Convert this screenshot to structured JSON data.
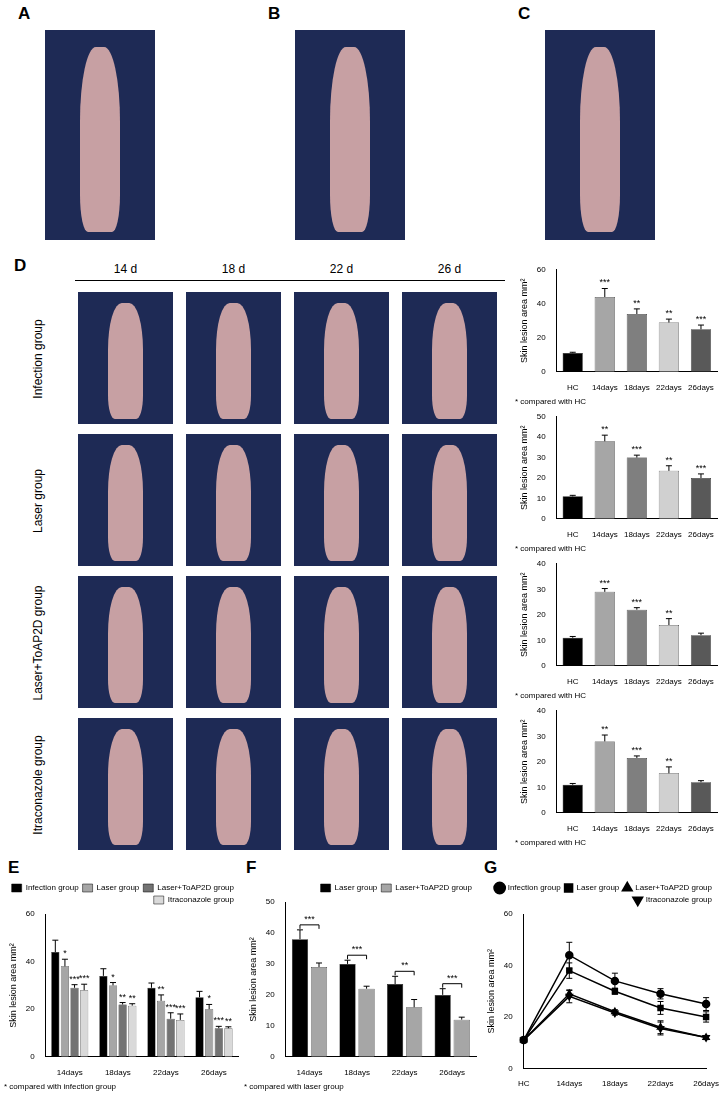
{
  "figure": {
    "panel_labels": [
      "A",
      "B",
      "C",
      "D",
      "E",
      "F",
      "G"
    ],
    "photo_columns": [
      "14 d",
      "18 d",
      "22 d",
      "26 d"
    ],
    "photo_rows": [
      "Infection group",
      "Laser group",
      "Laser+ToAP2D group",
      "Itraconazole group"
    ]
  },
  "chart_data": [
    {
      "type": "bar",
      "y_label": "Skin lesion area mm²",
      "note": "* compared with HC",
      "categories": [
        "HC",
        "14days",
        "18days",
        "22days",
        "26days"
      ],
      "values": [
        11,
        44,
        34,
        29,
        25
      ],
      "errors": [
        0.5,
        5,
        3,
        2,
        2.5
      ],
      "colors": [
        "#000000",
        "#a6a6a6",
        "#7f7f7f",
        "#d0d0d0",
        "#595959"
      ],
      "annotations": [
        null,
        "***",
        "**",
        "**",
        "***"
      ],
      "ylim": [
        0,
        60
      ],
      "yticks": [
        0,
        20,
        40,
        60
      ],
      "grid": false
    },
    {
      "type": "bar",
      "y_label": "Skin lesion area mm²",
      "note": "* compared with HC",
      "categories": [
        "HC",
        "14days",
        "18days",
        "22days",
        "26days"
      ],
      "values": [
        11,
        38,
        30,
        23.5,
        20
      ],
      "errors": [
        0.5,
        3,
        1.2,
        2.5,
        2
      ],
      "colors": [
        "#000000",
        "#a6a6a6",
        "#7f7f7f",
        "#d0d0d0",
        "#595959"
      ],
      "annotations": [
        null,
        "**",
        "***",
        "**",
        "***"
      ],
      "ylim": [
        0,
        50
      ],
      "yticks": [
        0,
        10,
        20,
        30,
        40,
        50
      ],
      "grid": false
    },
    {
      "type": "bar",
      "y_label": "Skin lesion area mm²",
      "note": "* compared with HC",
      "categories": [
        "HC",
        "14days",
        "18days",
        "22days",
        "26days"
      ],
      "values": [
        11,
        29,
        22,
        16,
        12
      ],
      "errors": [
        0.5,
        1.3,
        0.8,
        2.5,
        0.8
      ],
      "colors": [
        "#000000",
        "#a6a6a6",
        "#7f7f7f",
        "#d0d0d0",
        "#595959"
      ],
      "annotations": [
        null,
        "***",
        "***",
        "**",
        null
      ],
      "ylim": [
        0,
        40
      ],
      "yticks": [
        0,
        10,
        20,
        30,
        40
      ],
      "grid": false
    },
    {
      "type": "bar",
      "y_label": "Skin lesion area mm²",
      "note": "* compared with HC",
      "categories": [
        "HC",
        "14days",
        "18days",
        "22days",
        "26days"
      ],
      "values": [
        11,
        28,
        21.5,
        15.5,
        12
      ],
      "errors": [
        0.5,
        2.5,
        0.8,
        2.5,
        0.6
      ],
      "colors": [
        "#000000",
        "#a6a6a6",
        "#7f7f7f",
        "#d0d0d0",
        "#595959"
      ],
      "annotations": [
        null,
        "**",
        "***",
        "**",
        null
      ],
      "ylim": [
        0,
        40
      ],
      "yticks": [
        0,
        10,
        20,
        30,
        40
      ],
      "grid": false
    },
    {
      "type": "bar",
      "y_label": "Skin lesion area mm²",
      "note": "* compared with infection group",
      "categories": [
        "14days",
        "18days",
        "22days",
        "26days"
      ],
      "series": [
        {
          "name": "Infection group",
          "color": "#000000",
          "values": [
            44,
            34,
            29,
            25
          ],
          "errors": [
            5,
            3,
            2,
            2.5
          ]
        },
        {
          "name": "Laser group",
          "color": "#a6a6a6",
          "values": [
            38,
            30,
            23.5,
            20
          ],
          "errors": [
            3,
            1.2,
            2.5,
            2
          ],
          "annotations": [
            "*",
            "*",
            "**",
            "*"
          ]
        },
        {
          "name": "Laser+ToAP2D group",
          "color": "#737373",
          "values": [
            29,
            22,
            16,
            12
          ],
          "errors": [
            1.3,
            0.8,
            2.5,
            0.8
          ],
          "annotations": [
            "***",
            "**",
            "***",
            "***"
          ]
        },
        {
          "name": "Itraconazole group",
          "color": "#d9d9d9",
          "values": [
            28,
            21.5,
            15.5,
            12
          ],
          "errors": [
            2.5,
            0.8,
            2.5,
            0.6
          ],
          "annotations": [
            "***",
            "**",
            "***",
            "**"
          ]
        }
      ],
      "legend": "upper right",
      "ylim": [
        0,
        60
      ],
      "yticks": [
        0,
        20,
        40,
        60
      ],
      "grid": false
    },
    {
      "type": "bar",
      "y_label": "Skin lesion area mm²",
      "note": "* compared with laser group",
      "categories": [
        "14days",
        "18days",
        "22days",
        "26days"
      ],
      "series": [
        {
          "name": "Laser group",
          "color": "#000000",
          "values": [
            38,
            30,
            23.5,
            20
          ],
          "errors": [
            3,
            1.2,
            2.5,
            2
          ]
        },
        {
          "name": "Laser+ToAP2D group",
          "color": "#a6a6a6",
          "values": [
            29,
            22,
            16,
            12
          ],
          "errors": [
            1.3,
            0.8,
            2.5,
            0.8
          ]
        }
      ],
      "annotations": [
        "***",
        "***",
        "**",
        "***"
      ],
      "legend": "upper right",
      "ylim": [
        0,
        50
      ],
      "yticks": [
        0,
        10,
        20,
        30,
        40,
        50
      ],
      "grid": false
    },
    {
      "type": "line",
      "y_label": "Skin lesion area mm²",
      "categories": [
        "HC",
        "14days",
        "18days",
        "22days",
        "26days"
      ],
      "series": [
        {
          "name": "Infection group",
          "color": "#000000",
          "marker": "circle",
          "values": [
            11,
            44,
            34,
            29,
            25
          ],
          "errors": [
            0.5,
            5,
            3,
            2,
            2.5
          ]
        },
        {
          "name": "Laser group",
          "color": "#000000",
          "marker": "square",
          "values": [
            11,
            38,
            30,
            23.5,
            20
          ],
          "errors": [
            0.5,
            3,
            1.2,
            2.5,
            2
          ]
        },
        {
          "name": "Laser+ToAP2D group",
          "color": "#000000",
          "marker": "triangle",
          "values": [
            11,
            29,
            22,
            16,
            12
          ],
          "errors": [
            0.5,
            1.3,
            0.8,
            2.5,
            0.8
          ]
        },
        {
          "name": "Itraconazole group",
          "color": "#000000",
          "marker": "triangle-down",
          "values": [
            11,
            28,
            21.5,
            15.5,
            12
          ],
          "errors": [
            0.5,
            2.5,
            0.8,
            2.5,
            0.6
          ]
        }
      ],
      "legend": "upper right",
      "ylim": [
        0,
        60
      ],
      "yticks": [
        0,
        20,
        40,
        60
      ],
      "grid": false
    }
  ]
}
